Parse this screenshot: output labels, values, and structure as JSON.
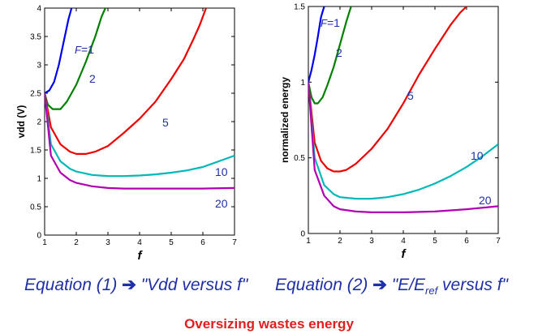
{
  "chart_data": [
    {
      "type": "line",
      "xlabel": "f",
      "ylabel": "vdd (V)",
      "xlim": [
        1,
        7
      ],
      "ylim": [
        0,
        4
      ],
      "xticks": [
        "1",
        "2",
        "3",
        "4",
        "5",
        "6",
        "7"
      ],
      "yticks": [
        "0",
        "0.5",
        "1",
        "1.5",
        "2",
        "2.5",
        "3",
        "3.5",
        "4"
      ],
      "series": [
        {
          "name": "F=1",
          "color": "#0000ee",
          "x": [
            1.0,
            1.15,
            1.3,
            1.45,
            1.6,
            1.75,
            1.85
          ],
          "y": [
            2.5,
            2.55,
            2.7,
            3.0,
            3.4,
            3.8,
            4.0
          ]
        },
        {
          "name": "2",
          "color": "#008000",
          "x": [
            1.0,
            1.1,
            1.25,
            1.5,
            1.7,
            2.0,
            2.3,
            2.6,
            2.8,
            2.92
          ],
          "y": [
            2.5,
            2.3,
            2.22,
            2.22,
            2.35,
            2.65,
            3.05,
            3.5,
            3.85,
            4.0
          ]
        },
        {
          "name": "5",
          "color": "#ee0000",
          "x": [
            1.0,
            1.2,
            1.5,
            1.8,
            2.0,
            2.3,
            2.6,
            3.0,
            3.5,
            4.0,
            4.5,
            5.0,
            5.4,
            5.7,
            5.9,
            6.1
          ],
          "y": [
            2.5,
            1.9,
            1.6,
            1.47,
            1.43,
            1.43,
            1.47,
            1.57,
            1.8,
            2.05,
            2.35,
            2.75,
            3.1,
            3.45,
            3.7,
            4.0
          ]
        },
        {
          "name": "10",
          "color": "#00b8b8",
          "x": [
            1.0,
            1.2,
            1.5,
            1.8,
            2.0,
            2.5,
            3.0,
            3.5,
            4.0,
            4.5,
            5.0,
            5.5,
            6.0,
            6.5,
            7.0
          ],
          "y": [
            2.5,
            1.6,
            1.3,
            1.17,
            1.12,
            1.06,
            1.04,
            1.04,
            1.05,
            1.07,
            1.1,
            1.14,
            1.2,
            1.3,
            1.4
          ]
        },
        {
          "name": "20",
          "color": "#b000b0",
          "x": [
            1.0,
            1.2,
            1.5,
            1.8,
            2.0,
            2.5,
            3.0,
            3.5,
            4.0,
            5.0,
            6.0,
            7.0
          ],
          "y": [
            2.5,
            1.4,
            1.1,
            0.97,
            0.92,
            0.86,
            0.83,
            0.82,
            0.82,
            0.82,
            0.82,
            0.83
          ]
        }
      ]
    },
    {
      "type": "line",
      "xlabel": "f",
      "ylabel": "normalized energy",
      "xlim": [
        1,
        7
      ],
      "ylim": [
        0,
        1.5
      ],
      "xticks": [
        "1",
        "2",
        "3",
        "4",
        "5",
        "6",
        "7"
      ],
      "yticks": [
        "0",
        "0.5",
        "1",
        "1.5"
      ],
      "series": [
        {
          "name": "F=1",
          "color": "#0000ee",
          "x": [
            1.0,
            1.1,
            1.2,
            1.3,
            1.4,
            1.5
          ],
          "y": [
            1.0,
            1.08,
            1.18,
            1.3,
            1.43,
            1.5
          ]
        },
        {
          "name": "2",
          "color": "#008000",
          "x": [
            1.0,
            1.1,
            1.2,
            1.3,
            1.45,
            1.6,
            1.8,
            2.0,
            2.2,
            2.35
          ],
          "y": [
            1.0,
            0.9,
            0.86,
            0.86,
            0.9,
            0.98,
            1.1,
            1.25,
            1.4,
            1.5
          ]
        },
        {
          "name": "5",
          "color": "#ee0000",
          "x": [
            1.0,
            1.2,
            1.4,
            1.6,
            1.8,
            2.0,
            2.2,
            2.5,
            3.0,
            3.5,
            4.0,
            4.5,
            5.0,
            5.5,
            5.8,
            6.0
          ],
          "y": [
            1.0,
            0.6,
            0.48,
            0.43,
            0.41,
            0.41,
            0.42,
            0.46,
            0.56,
            0.69,
            0.86,
            1.05,
            1.22,
            1.38,
            1.46,
            1.5
          ]
        },
        {
          "name": "10",
          "color": "#00b8b8",
          "x": [
            1.0,
            1.2,
            1.5,
            1.8,
            2.0,
            2.5,
            3.0,
            3.5,
            4.0,
            4.5,
            5.0,
            5.5,
            6.0,
            6.5,
            7.0
          ],
          "y": [
            1.0,
            0.5,
            0.32,
            0.26,
            0.24,
            0.23,
            0.23,
            0.24,
            0.26,
            0.29,
            0.33,
            0.38,
            0.44,
            0.51,
            0.59
          ]
        },
        {
          "name": "20",
          "color": "#b000b0",
          "x": [
            1.0,
            1.2,
            1.5,
            1.8,
            2.0,
            2.5,
            3.0,
            3.5,
            4.0,
            5.0,
            6.0,
            7.0
          ],
          "y": [
            1.0,
            0.42,
            0.25,
            0.18,
            0.16,
            0.145,
            0.14,
            0.14,
            0.14,
            0.145,
            0.16,
            0.18
          ]
        }
      ]
    }
  ],
  "captions": {
    "left": {
      "text": "Equation (1)",
      "arrow": "➔",
      "rest": "\"Vdd versus f\""
    },
    "right": {
      "text": "Equation (2)",
      "arrow": "➔",
      "pre": "\"E/E",
      "sub": "ref",
      "post": " versus f\""
    }
  },
  "footer": "Oversizing wastes energy"
}
